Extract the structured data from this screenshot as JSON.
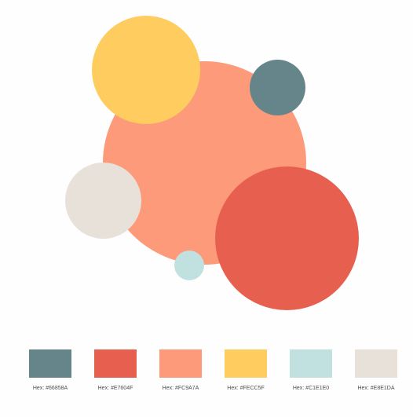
{
  "palette": {
    "colors": [
      {
        "hex": "#66858A",
        "label": "Hex: #66858A"
      },
      {
        "hex": "#E7604F",
        "label": "Hex: #E7604F"
      },
      {
        "hex": "#FC9A7A",
        "label": "Hex: #FC9A7A"
      },
      {
        "hex": "#FECC5F",
        "label": "Hex: #FECC5F"
      },
      {
        "hex": "#C1E1E0",
        "label": "Hex: #C1E1E0"
      },
      {
        "hex": "#E8E1DA",
        "label": "Hex: #E8E1DA"
      }
    ]
  },
  "circles": [
    {
      "name": "large-coral",
      "color": "#FC9A7A"
    },
    {
      "name": "yellow",
      "color": "#FECC5F"
    },
    {
      "name": "teal",
      "color": "#66858A"
    },
    {
      "name": "beige",
      "color": "#E8E1DA"
    },
    {
      "name": "red",
      "color": "#E7604F"
    },
    {
      "name": "light-blue",
      "color": "#C1E1E0"
    }
  ]
}
